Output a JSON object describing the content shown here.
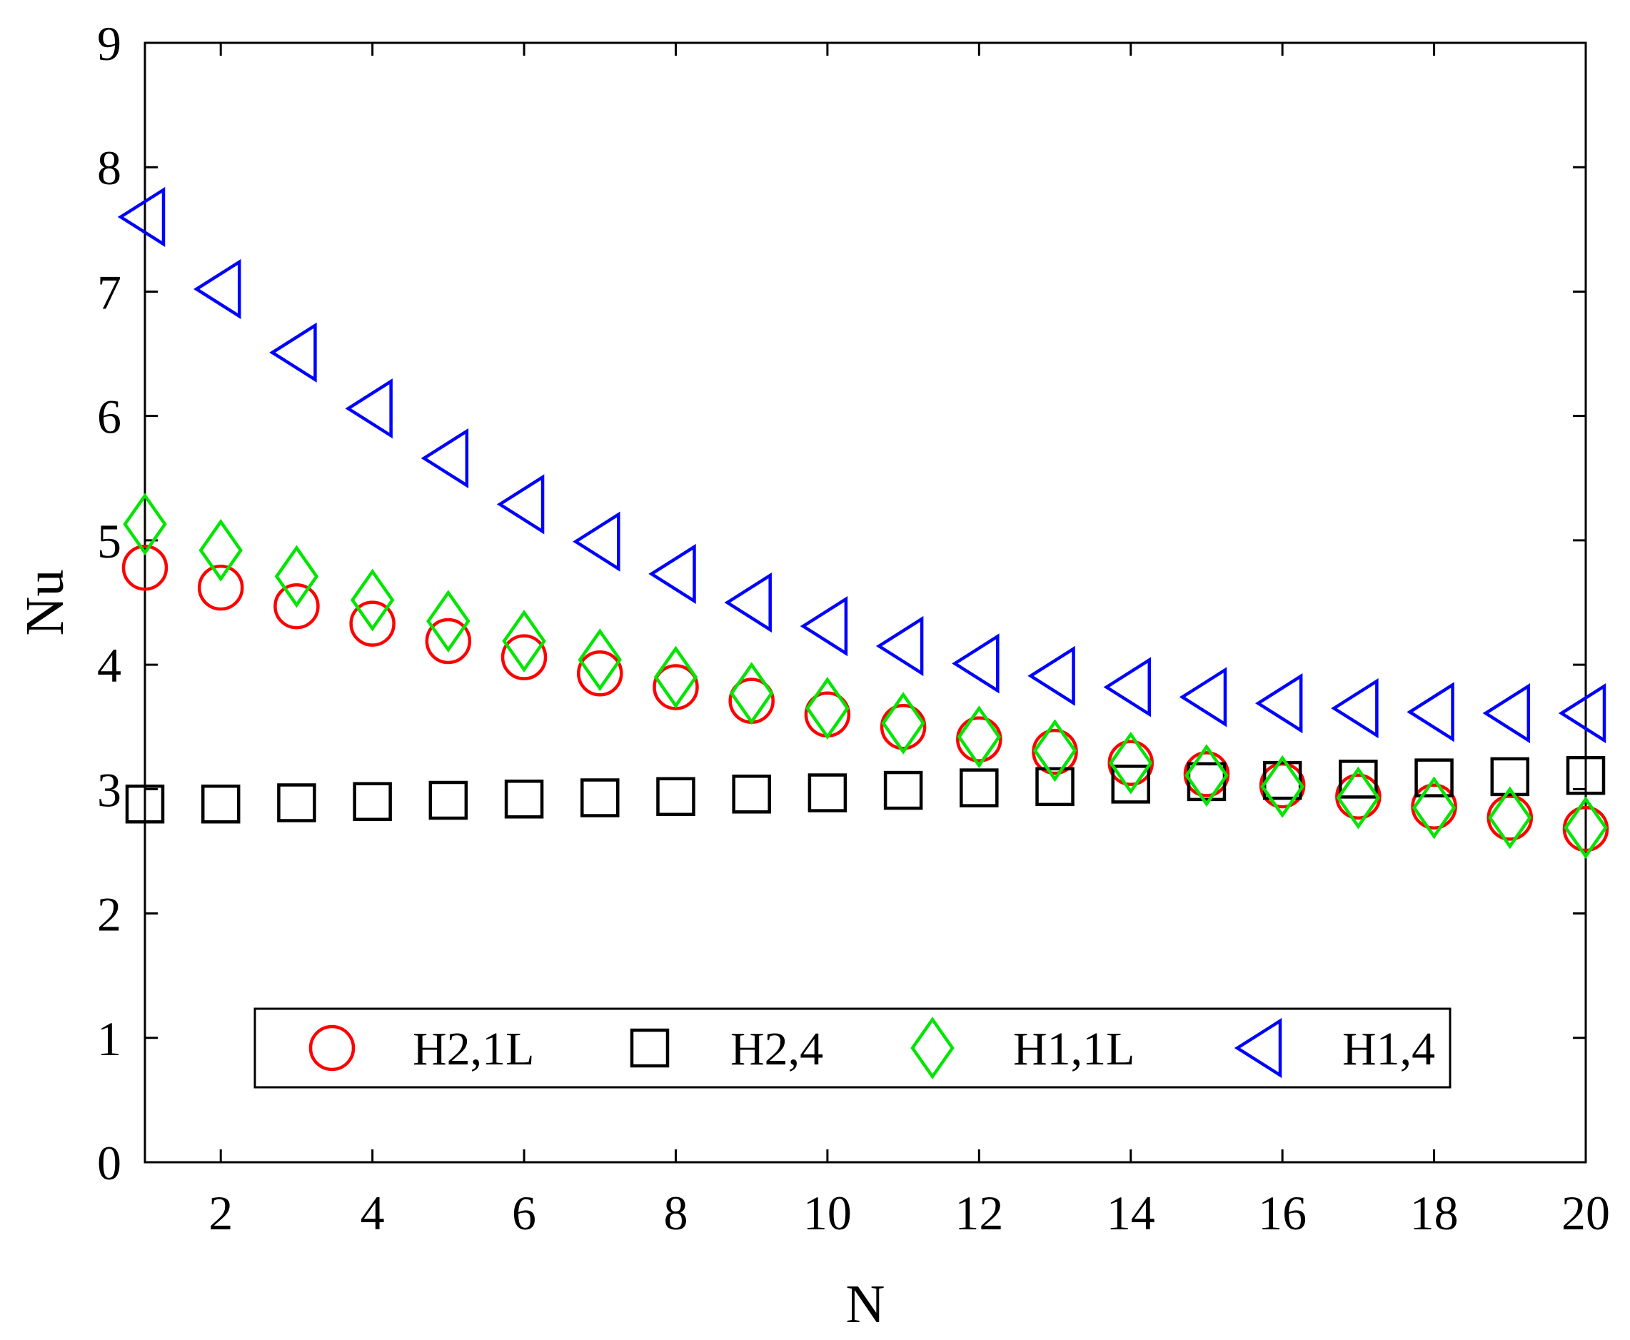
{
  "chart_data": {
    "type": "scatter",
    "xlabel": "N",
    "ylabel": "Nu",
    "xlim": [
      1,
      20
    ],
    "ylim": [
      0,
      9
    ],
    "xticks": [
      2,
      4,
      6,
      8,
      10,
      12,
      14,
      16,
      18,
      20
    ],
    "yticks": [
      0,
      1,
      2,
      3,
      4,
      5,
      6,
      7,
      8,
      9
    ],
    "grid": false,
    "legend_position": "bottom-center",
    "x": [
      1,
      2,
      3,
      4,
      5,
      6,
      7,
      8,
      9,
      10,
      11,
      12,
      13,
      14,
      15,
      16,
      17,
      18,
      19,
      20
    ],
    "series": [
      {
        "name": "H2,1L",
        "marker": "circle",
        "color": "#ff0000",
        "values": [
          4.78,
          4.62,
          4.47,
          4.33,
          4.19,
          4.06,
          3.93,
          3.82,
          3.71,
          3.6,
          3.5,
          3.4,
          3.3,
          3.21,
          3.12,
          3.03,
          2.94,
          2.86,
          2.77,
          2.68
        ]
      },
      {
        "name": "H2,4",
        "marker": "square",
        "color": "#000000",
        "values": [
          2.88,
          2.88,
          2.89,
          2.9,
          2.91,
          2.92,
          2.93,
          2.94,
          2.96,
          2.97,
          2.99,
          3.01,
          3.02,
          3.04,
          3.06,
          3.07,
          3.08,
          3.09,
          3.1,
          3.11
        ]
      },
      {
        "name": "H1,1L",
        "marker": "diamond",
        "color": "#00e600",
        "values": [
          5.13,
          4.92,
          4.71,
          4.52,
          4.35,
          4.19,
          4.04,
          3.9,
          3.77,
          3.65,
          3.53,
          3.42,
          3.31,
          3.21,
          3.11,
          3.02,
          2.93,
          2.85,
          2.77,
          2.69
        ]
      },
      {
        "name": "H1,4",
        "marker": "triangle-left",
        "color": "#0000ff",
        "values": [
          7.6,
          7.02,
          6.51,
          6.06,
          5.66,
          5.29,
          4.99,
          4.73,
          4.5,
          4.31,
          4.15,
          4.01,
          3.91,
          3.82,
          3.74,
          3.69,
          3.65,
          3.62,
          3.61,
          3.61
        ]
      }
    ]
  }
}
